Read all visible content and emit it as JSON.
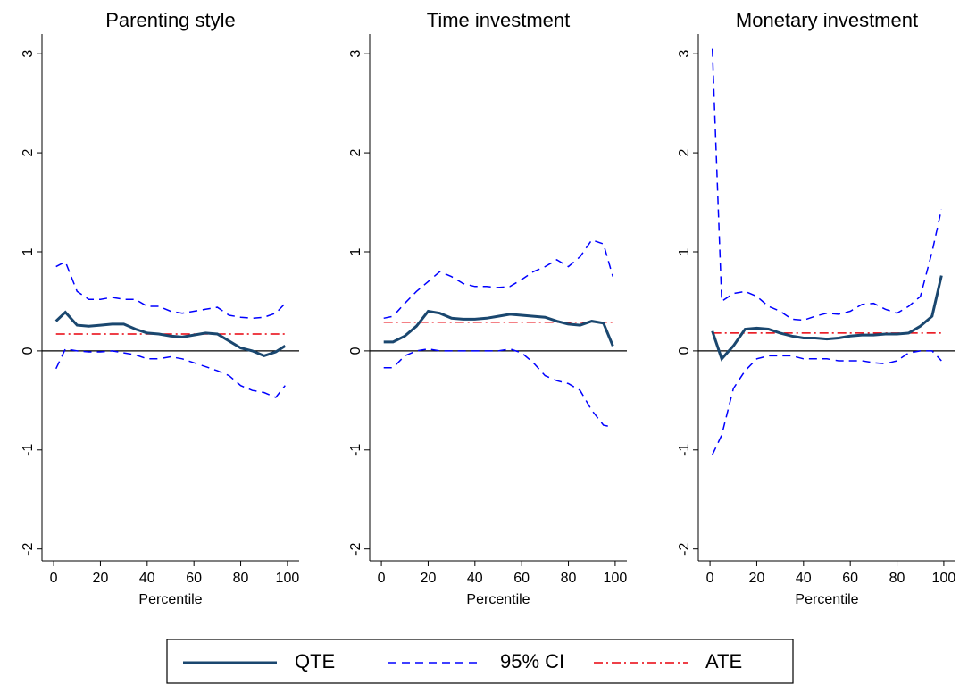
{
  "legend": [
    {
      "name": "QTE",
      "color": "#1a476f"
    },
    {
      "name": "95% CI",
      "color": "#0000ff"
    },
    {
      "name": "ATE",
      "color": "#e8000b"
    }
  ],
  "chart_data": [
    {
      "type": "line",
      "title": "Parenting style",
      "x_label": "Percentile",
      "x": [
        1,
        5,
        10,
        15,
        20,
        25,
        30,
        35,
        40,
        45,
        50,
        55,
        60,
        65,
        70,
        75,
        80,
        85,
        90,
        95,
        99
      ],
      "qte": [
        0.3,
        0.39,
        0.26,
        0.25,
        0.26,
        0.27,
        0.27,
        0.22,
        0.18,
        0.17,
        0.15,
        0.14,
        0.16,
        0.18,
        0.17,
        0.1,
        0.03,
        0,
        -0.05,
        -0.01,
        0.05
      ],
      "ci_upper": [
        0.85,
        0.9,
        0.6,
        0.52,
        0.52,
        0.54,
        0.52,
        0.52,
        0.45,
        0.45,
        0.4,
        0.38,
        0.4,
        0.42,
        0.44,
        0.36,
        0.34,
        0.33,
        0.34,
        0.38,
        0.48
      ],
      "ci_lower": [
        -0.18,
        0.02,
        0,
        -0.01,
        -0.01,
        0,
        -0.02,
        -0.04,
        -0.08,
        -0.08,
        -0.06,
        -0.08,
        -0.12,
        -0.16,
        -0.2,
        -0.25,
        -0.35,
        -0.4,
        -0.42,
        -0.47,
        -0.35
      ],
      "ate": 0.17,
      "xlim": [
        -5,
        105
      ],
      "xticks": [
        0,
        20,
        40,
        60,
        80,
        100
      ],
      "ylim": [
        -2.12,
        3.2
      ],
      "yticks": [
        -2,
        -1,
        0,
        1,
        2,
        3
      ]
    },
    {
      "type": "line",
      "title": "Time investment",
      "x_label": "Percentile",
      "x": [
        1,
        5,
        10,
        15,
        20,
        25,
        30,
        35,
        40,
        45,
        50,
        55,
        60,
        65,
        70,
        75,
        80,
        85,
        90,
        95,
        99
      ],
      "qte": [
        0.09,
        0.09,
        0.15,
        0.25,
        0.4,
        0.38,
        0.33,
        0.32,
        0.32,
        0.33,
        0.35,
        0.37,
        0.36,
        0.35,
        0.34,
        0.3,
        0.27,
        0.26,
        0.3,
        0.28,
        0.05
      ],
      "ci_upper": [
        0.33,
        0.35,
        0.48,
        0.6,
        0.7,
        0.8,
        0.75,
        0.68,
        0.65,
        0.65,
        0.64,
        0.65,
        0.72,
        0.8,
        0.85,
        0.92,
        0.85,
        0.95,
        1.12,
        1.08,
        0.75
      ],
      "ci_lower": [
        -0.17,
        -0.17,
        -0.05,
        0,
        0.02,
        0,
        0,
        0,
        0,
        0,
        0,
        0.02,
        -0.02,
        -0.12,
        -0.25,
        -0.3,
        -0.33,
        -0.4,
        -0.6,
        -0.75,
        -0.77
      ],
      "ate": 0.29,
      "xlim": [
        -5,
        105
      ],
      "xticks": [
        0,
        20,
        40,
        60,
        80,
        100
      ],
      "ylim": [
        -2.12,
        3.2
      ],
      "yticks": [
        -2,
        -1,
        0,
        1,
        2,
        3
      ]
    },
    {
      "type": "line",
      "title": "Monetary investment",
      "x_label": "Percentile",
      "x": [
        1,
        5,
        10,
        15,
        20,
        25,
        30,
        35,
        40,
        45,
        50,
        55,
        60,
        65,
        70,
        75,
        80,
        85,
        90,
        95,
        99
      ],
      "qte": [
        0.2,
        -0.08,
        0.05,
        0.22,
        0.23,
        0.22,
        0.18,
        0.15,
        0.13,
        0.13,
        0.12,
        0.13,
        0.15,
        0.16,
        0.16,
        0.17,
        0.17,
        0.18,
        0.25,
        0.35,
        0.76
      ],
      "ci_upper": [
        3.05,
        0.5,
        0.58,
        0.6,
        0.55,
        0.45,
        0.4,
        0.32,
        0.31,
        0.35,
        0.38,
        0.37,
        0.4,
        0.47,
        0.48,
        0.42,
        0.38,
        0.45,
        0.55,
        1.0,
        1.43
      ],
      "ci_lower": [
        -1.05,
        -0.85,
        -0.38,
        -0.2,
        -0.08,
        -0.05,
        -0.05,
        -0.05,
        -0.08,
        -0.08,
        -0.08,
        -0.1,
        -0.1,
        -0.1,
        -0.12,
        -0.13,
        -0.1,
        -0.02,
        0,
        0,
        -0.1
      ],
      "ate": 0.18,
      "xlim": [
        -5,
        105
      ],
      "xticks": [
        0,
        20,
        40,
        60,
        80,
        100
      ],
      "ylim": [
        -2.12,
        3.2
      ],
      "yticks": [
        -2,
        -1,
        0,
        1,
        2,
        3
      ]
    }
  ]
}
